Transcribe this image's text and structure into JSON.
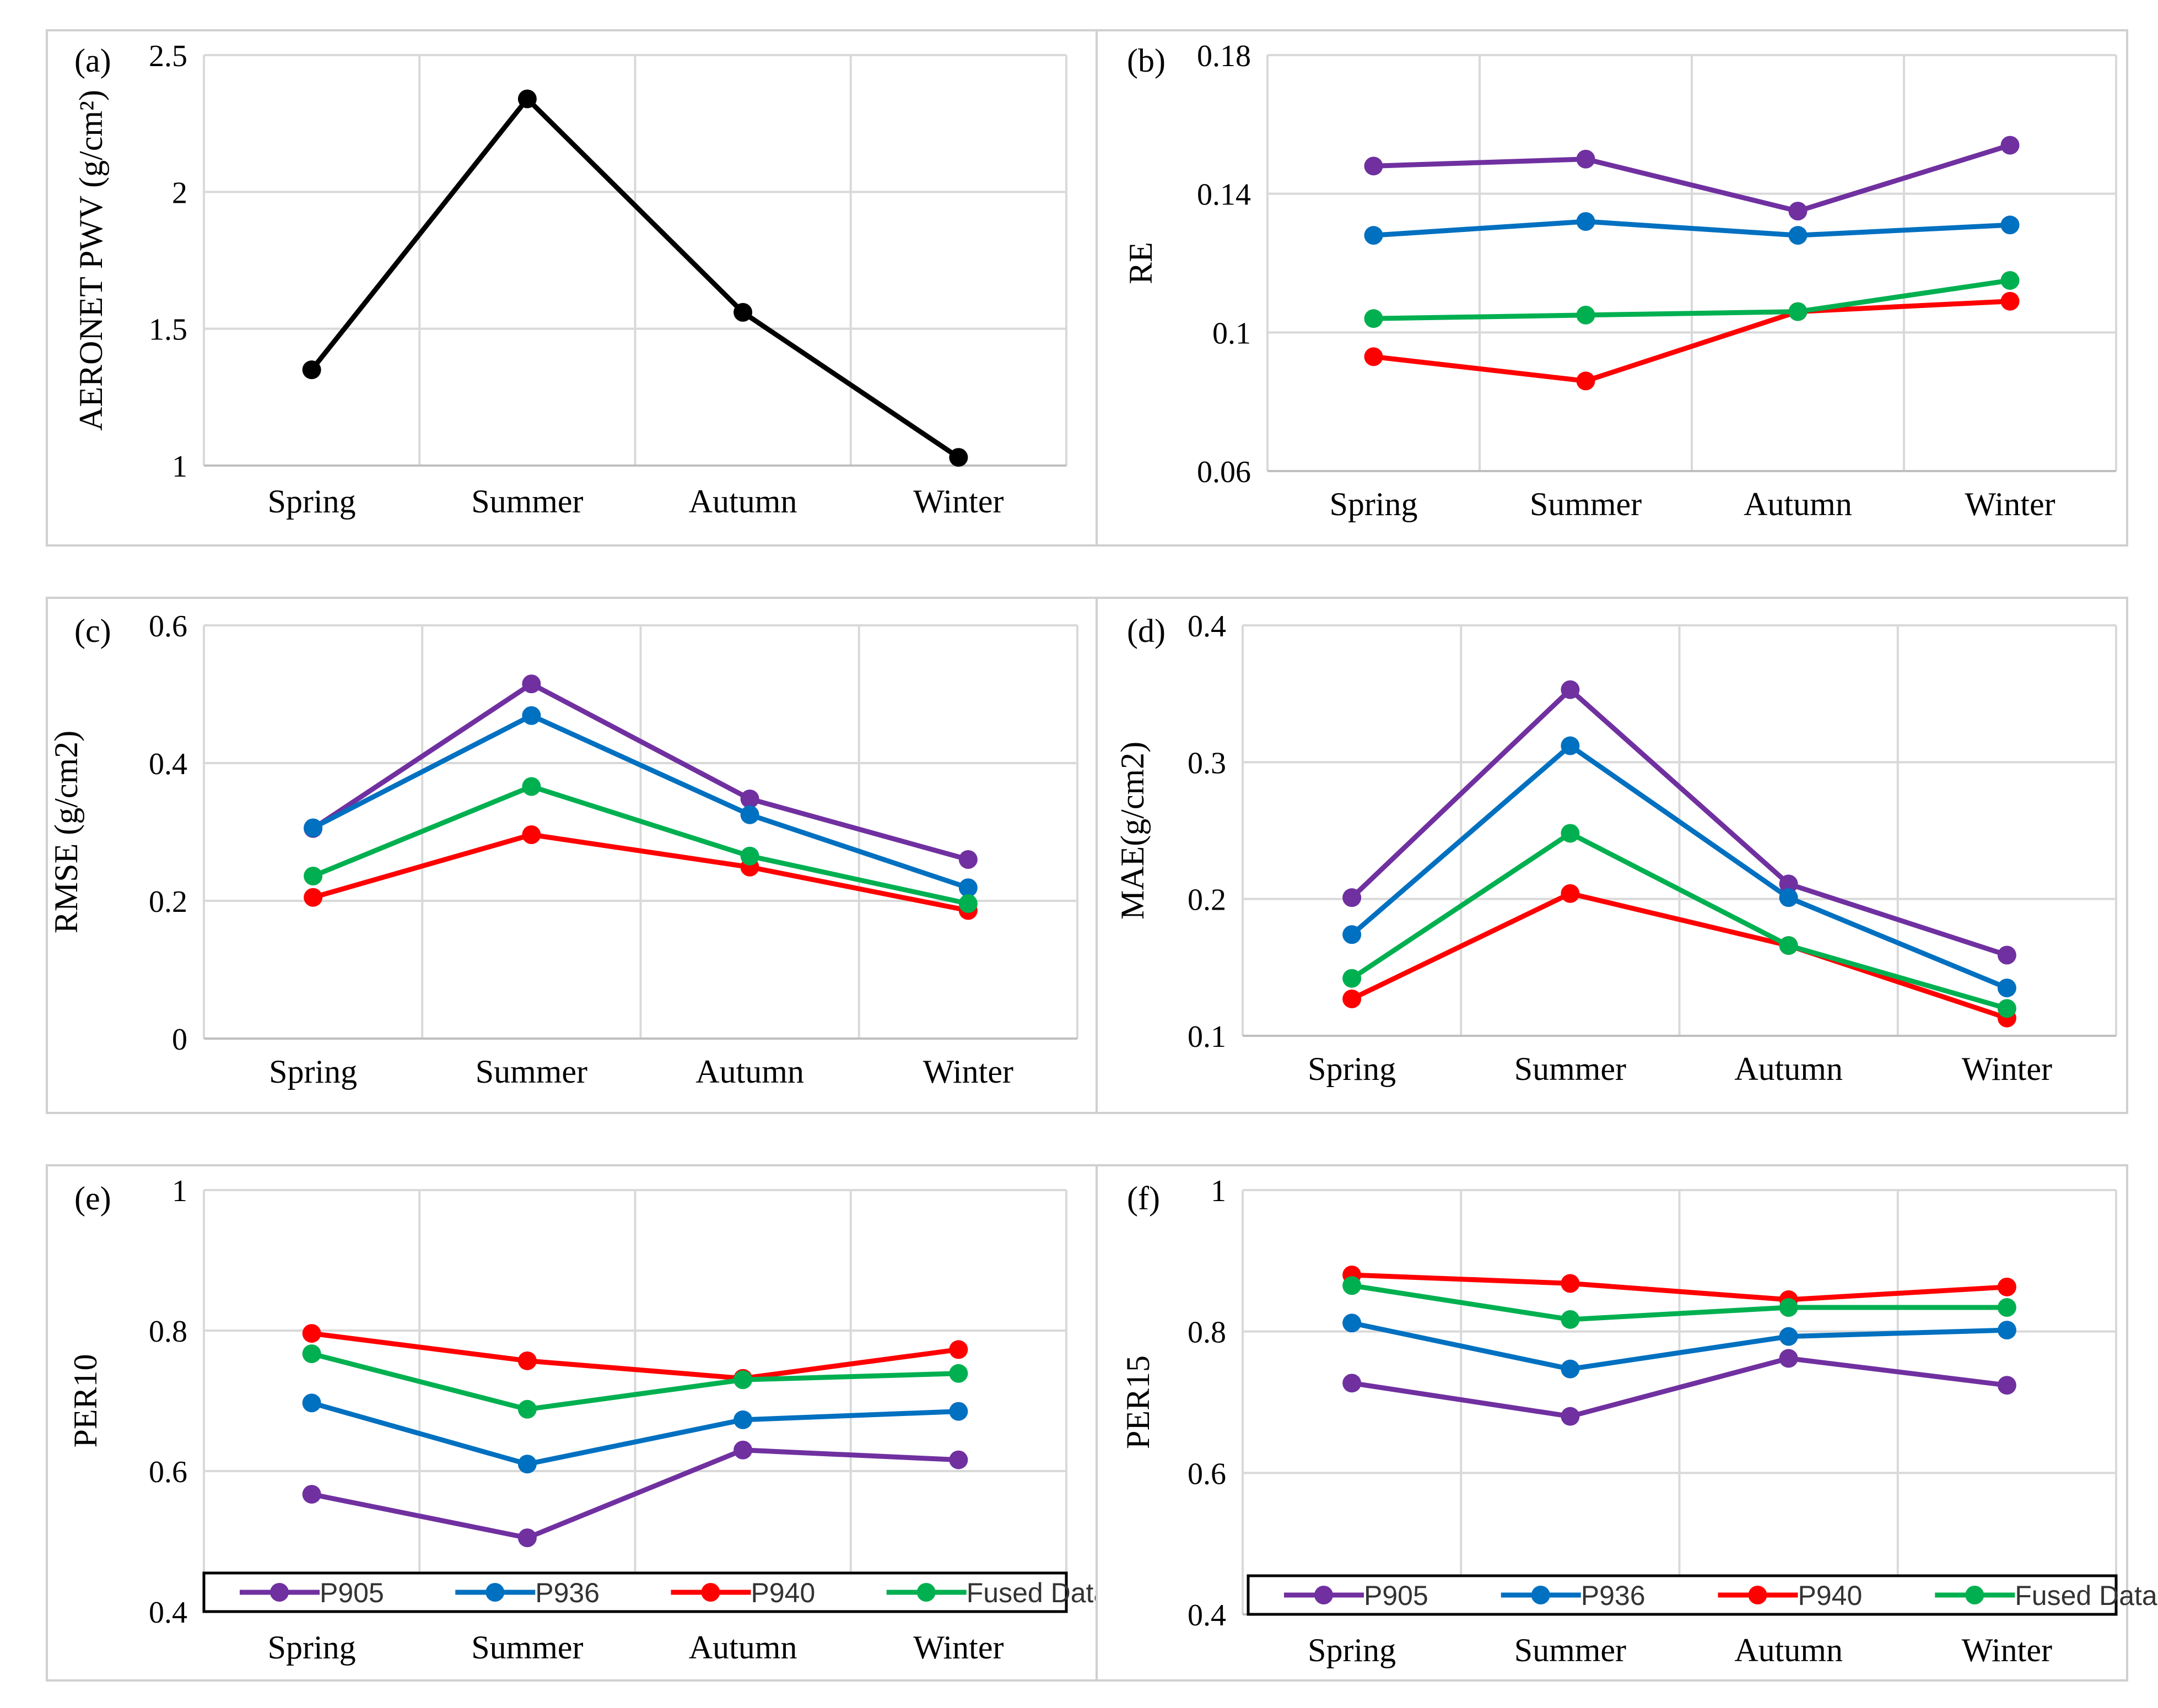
{
  "colors": {
    "P905": "#7030A0",
    "P936": "#0070C0",
    "P940": "#FF0000",
    "Fused Dataset": "#00B050",
    "single": "#000000",
    "grid": "#D9D9D9",
    "frame": "#D0D0D0"
  },
  "legend_entries": [
    "P905",
    "P936",
    "P940",
    "Fused Dataset"
  ],
  "chart_data": [
    {
      "type": "line",
      "panel_label": "(a)",
      "title": "",
      "xlabel": "",
      "ylabel": "AERONET PWV (g/cm²)",
      "categories": [
        "Spring",
        "Summer",
        "Autumn",
        "Winter"
      ],
      "ylim": [
        1,
        2.5
      ],
      "yticks": [
        "1",
        "1.5",
        "2",
        "2.5"
      ],
      "legend": "none",
      "grid": true,
      "series": [
        {
          "name": "AERONET PWV",
          "color_key": "single",
          "values": [
            1.35,
            2.34,
            1.56,
            1.03
          ]
        }
      ]
    },
    {
      "type": "line",
      "panel_label": "(b)",
      "title": "",
      "xlabel": "",
      "ylabel": "RE",
      "categories": [
        "Spring",
        "Summer",
        "Autumn",
        "Winter"
      ],
      "ylim": [
        0.06,
        0.18
      ],
      "yticks": [
        "0.06",
        "0.1",
        "0.14",
        "0.18"
      ],
      "legend": "none",
      "grid": true,
      "series": [
        {
          "name": "P905",
          "color_key": "P905",
          "values": [
            0.148,
            0.15,
            0.135,
            0.154
          ]
        },
        {
          "name": "P936",
          "color_key": "P936",
          "values": [
            0.128,
            0.132,
            0.128,
            0.131
          ]
        },
        {
          "name": "P940",
          "color_key": "P940",
          "values": [
            0.093,
            0.086,
            0.106,
            0.109
          ]
        },
        {
          "name": "Fused Dataset",
          "color_key": "Fused Dataset",
          "values": [
            0.104,
            0.105,
            0.106,
            0.115
          ]
        }
      ]
    },
    {
      "type": "line",
      "panel_label": "(c)",
      "title": "",
      "xlabel": "",
      "ylabel": "RMSE (g/cm2)",
      "categories": [
        "Spring",
        "Summer",
        "Autumn",
        "Winter"
      ],
      "ylim": [
        0,
        0.6
      ],
      "yticks": [
        "0",
        "0.2",
        "0.4",
        "0.6"
      ],
      "legend": "none",
      "grid": true,
      "series": [
        {
          "name": "P905",
          "color_key": "P905",
          "values": [
            0.305,
            0.515,
            0.348,
            0.26
          ]
        },
        {
          "name": "P936",
          "color_key": "P936",
          "values": [
            0.306,
            0.469,
            0.325,
            0.219
          ]
        },
        {
          "name": "P940",
          "color_key": "P940",
          "values": [
            0.205,
            0.296,
            0.249,
            0.186
          ]
        },
        {
          "name": "Fused Dataset",
          "color_key": "Fused Dataset",
          "values": [
            0.236,
            0.366,
            0.265,
            0.196
          ]
        }
      ]
    },
    {
      "type": "line",
      "panel_label": "(d)",
      "title": "",
      "xlabel": "",
      "ylabel": "MAE(g/cm2)",
      "categories": [
        "Spring",
        "Summer",
        "Autumn",
        "Winter"
      ],
      "ylim": [
        0.1,
        0.4
      ],
      "yticks": [
        "0.1",
        "0.2",
        "0.3",
        "0.4"
      ],
      "legend": "none",
      "grid": true,
      "series": [
        {
          "name": "P905",
          "color_key": "P905",
          "values": [
            0.201,
            0.353,
            0.211,
            0.159
          ]
        },
        {
          "name": "P936",
          "color_key": "P936",
          "values": [
            0.174,
            0.312,
            0.201,
            0.135
          ]
        },
        {
          "name": "P940",
          "color_key": "P940",
          "values": [
            0.127,
            0.204,
            0.166,
            0.113
          ]
        },
        {
          "name": "Fused Dataset",
          "color_key": "Fused Dataset",
          "values": [
            0.142,
            0.248,
            0.166,
            0.12
          ]
        }
      ]
    },
    {
      "type": "line",
      "panel_label": "(e)",
      "title": "",
      "xlabel": "",
      "ylabel": "PER10",
      "categories": [
        "Spring",
        "Summer",
        "Autumn",
        "Winter"
      ],
      "ylim": [
        0.4,
        1
      ],
      "yticks": [
        "0.4",
        "0.6",
        "0.8",
        "1"
      ],
      "legend": "bottom (inside plot area)",
      "grid": true,
      "series": [
        {
          "name": "P905",
          "color_key": "P905",
          "values": [
            0.567,
            0.505,
            0.63,
            0.616
          ]
        },
        {
          "name": "P936",
          "color_key": "P936",
          "values": [
            0.697,
            0.61,
            0.673,
            0.685
          ]
        },
        {
          "name": "P940",
          "color_key": "P940",
          "values": [
            0.796,
            0.757,
            0.732,
            0.773
          ]
        },
        {
          "name": "Fused Dataset",
          "color_key": "Fused Dataset",
          "values": [
            0.767,
            0.688,
            0.73,
            0.739
          ]
        }
      ]
    },
    {
      "type": "line",
      "panel_label": "(f)",
      "title": "",
      "xlabel": "",
      "ylabel": "PER15",
      "categories": [
        "Spring",
        "Summer",
        "Autumn",
        "Winter"
      ],
      "ylim": [
        0.4,
        1
      ],
      "yticks": [
        "0.4",
        "0.6",
        "0.8",
        "1"
      ],
      "legend": "bottom (inside plot area)",
      "grid": true,
      "series": [
        {
          "name": "P905",
          "color_key": "P905",
          "values": [
            0.727,
            0.68,
            0.762,
            0.724
          ]
        },
        {
          "name": "P936",
          "color_key": "P936",
          "values": [
            0.812,
            0.747,
            0.793,
            0.802
          ]
        },
        {
          "name": "P940",
          "color_key": "P940",
          "values": [
            0.88,
            0.868,
            0.845,
            0.863
          ]
        },
        {
          "name": "Fused Dataset",
          "color_key": "Fused Dataset",
          "values": [
            0.865,
            0.817,
            0.834,
            0.834
          ]
        }
      ]
    }
  ]
}
